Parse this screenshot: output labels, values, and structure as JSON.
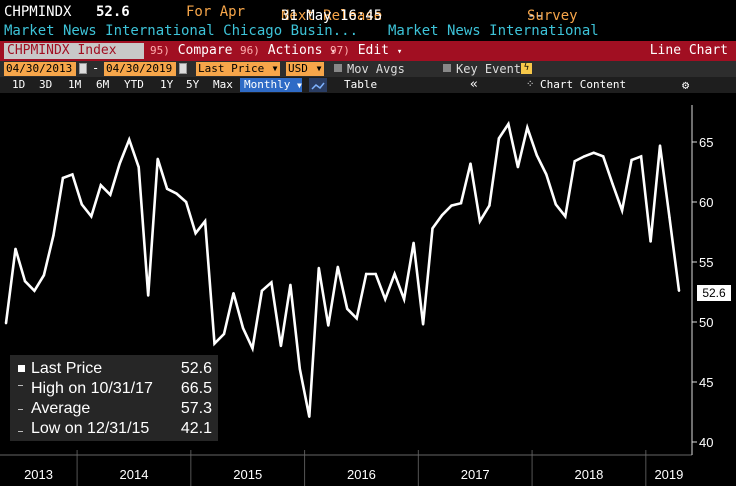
{
  "header": {
    "ticker": "CHPMINDX",
    "last_value": "52.6",
    "period": "For Apr",
    "next_release_label": "Next Release",
    "next_release_value": "31 May 16:45",
    "survey_label": "Survey",
    "survey_value": "--",
    "source_1": "Market News International Chicago Busin...",
    "source_2": "Market News International"
  },
  "toolbar": {
    "index_label": "CHPMINDX Index",
    "compare_num": "95)",
    "compare_label": "Compare",
    "actions_num": "96)",
    "actions_label": "Actions",
    "edit_num": "97)",
    "edit_label": "Edit",
    "chart_type": "Line Chart"
  },
  "controls": {
    "start_date": "04/30/2013",
    "end_date": "04/30/2019",
    "field": "Last Price",
    "currency": "USD",
    "mov_avgs": "Mov Avgs",
    "key_events": "Key Events"
  },
  "periods": {
    "tabs": [
      "1D",
      "3D",
      "1M",
      "6M",
      "YTD",
      "1Y",
      "5Y",
      "Max"
    ],
    "frequency": "Monthly",
    "table": "Table",
    "collapse": "«",
    "chart_content": "Chart Content"
  },
  "legend": {
    "last_label": "Last Price",
    "last_value": "52.6",
    "high_label": "High on 10/31/17",
    "high_value": "66.5",
    "avg_label": "Average",
    "avg_value": "57.3",
    "low_label": "Low on 12/31/15",
    "low_value": "42.1"
  },
  "colors": {
    "accent_orange": "#f7a64a",
    "toolbar_red": "#a10f22",
    "source_cyan": "#3dc3d8",
    "line": "#ffffff"
  },
  "chart_data": {
    "type": "line",
    "title": "",
    "xlabel": "",
    "ylabel": "",
    "ylim": [
      40,
      67.5
    ],
    "yticks": [
      40,
      45,
      50,
      55,
      60,
      65
    ],
    "xticks": [
      "2013",
      "2014",
      "2015",
      "2016",
      "2017",
      "2018",
      "2019"
    ],
    "grid": false,
    "y_axis_position": "right",
    "last_value_label": "52.6",
    "series": [
      {
        "values": [
          49.9,
          56.1,
          53.4,
          52.6,
          53.9,
          57.2,
          62.0,
          62.3,
          59.8,
          58.8,
          61.4,
          60.6,
          63.2,
          65.2,
          62.9,
          52.2,
          63.6,
          61.1,
          60.7,
          60.0,
          57.4,
          58.4,
          48.2,
          49.0,
          52.4,
          49.5,
          47.8,
          52.6,
          53.3,
          48.0,
          53.1,
          46.1,
          42.1,
          54.5,
          49.7,
          54.6,
          51.1,
          50.3,
          54.0,
          54.0,
          51.9,
          54.0,
          51.9,
          56.6,
          49.8,
          57.8,
          58.9,
          59.7,
          59.9,
          63.2,
          58.4,
          59.7,
          65.3,
          66.5,
          62.9,
          66.2,
          63.9,
          62.3,
          59.8,
          58.8,
          63.4,
          63.8,
          64.1,
          63.8,
          61.5,
          59.3,
          63.5,
          63.8,
          56.7,
          64.7,
          58.7,
          52.6
        ]
      }
    ]
  }
}
